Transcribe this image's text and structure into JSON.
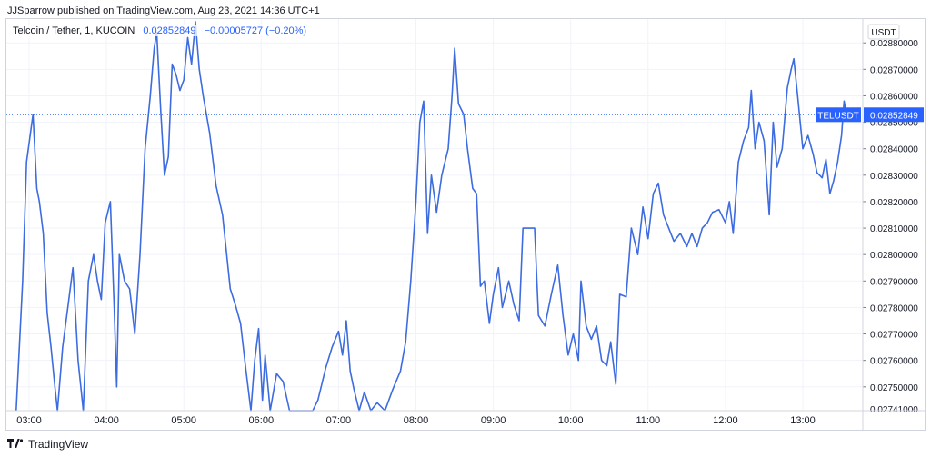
{
  "header": {
    "published_text": "JJSparrow published on TradingView.com, Aug 23, 2021 14:36 UTC+1"
  },
  "legend": {
    "symbol": "Telcoin / Tether, 1, KUCOIN",
    "last": "0.02852849",
    "change": "−0.00005727 (−0.20%)"
  },
  "price_axis": {
    "currency": "USDT",
    "ticker_label": "TELUSDT",
    "ticker_value": "0.02852849",
    "bottom_label": "0.02741000"
  },
  "footer": {
    "brand": "TradingView"
  },
  "colors": {
    "line": "#3d6be0",
    "accent": "#2962ff",
    "grid": "#f0f3fa",
    "text": "#131722"
  },
  "chart_data": {
    "type": "line",
    "title": "Telcoin / Tether, 1, KUCOIN",
    "xlabel": "",
    "ylabel": "",
    "grid": true,
    "ylim": [
      0.02741,
      0.02889
    ],
    "x_ticks": [
      "03:00",
      "04:00",
      "05:00",
      "06:00",
      "07:00",
      "08:00",
      "09:00",
      "10:00",
      "11:00",
      "12:00",
      "13:00"
    ],
    "y_ticks": [
      "0.02750000",
      "0.02760000",
      "0.02770000",
      "0.02780000",
      "0.02790000",
      "0.02800000",
      "0.02810000",
      "0.02820000",
      "0.02830000",
      "0.02840000",
      "0.02850000",
      "0.02860000",
      "0.02870000",
      "0.02880000"
    ],
    "last_price": 0.02852849,
    "series": [
      {
        "points": [
          [
            "02:50",
            0.02741
          ],
          [
            "02:55",
            0.0279
          ],
          [
            "02:58",
            0.02835
          ],
          [
            "03:03",
            0.02853
          ],
          [
            "03:06",
            0.02825
          ],
          [
            "03:08",
            0.0282
          ],
          [
            "03:11",
            0.02808
          ],
          [
            "03:14",
            0.02778
          ],
          [
            "03:17",
            0.02765
          ],
          [
            "03:20",
            0.0275
          ],
          [
            "03:22",
            0.02741
          ],
          [
            "03:26",
            0.02765
          ],
          [
            "03:30",
            0.0278
          ],
          [
            "03:34",
            0.02795
          ],
          [
            "03:38",
            0.0276
          ],
          [
            "03:42",
            0.02741
          ],
          [
            "03:46",
            0.0279
          ],
          [
            "03:50",
            0.028
          ],
          [
            "03:53",
            0.0279
          ],
          [
            "03:56",
            0.02783
          ],
          [
            "03:59",
            0.02812
          ],
          [
            "04:03",
            0.0282
          ],
          [
            "04:06",
            0.0278
          ],
          [
            "04:08",
            0.0275
          ],
          [
            "04:10",
            0.028
          ],
          [
            "04:14",
            0.0279
          ],
          [
            "04:18",
            0.02787
          ],
          [
            "04:22",
            0.0277
          ],
          [
            "04:26",
            0.028
          ],
          [
            "04:30",
            0.0284
          ],
          [
            "04:34",
            0.0286
          ],
          [
            "04:37",
            0.02878
          ],
          [
            "04:39",
            0.02884
          ],
          [
            "04:42",
            0.02855
          ],
          [
            "04:45",
            0.0283
          ],
          [
            "04:48",
            0.02837
          ],
          [
            "04:51",
            0.02872
          ],
          [
            "04:54",
            0.02868
          ],
          [
            "04:57",
            0.02862
          ],
          [
            "05:00",
            0.02866
          ],
          [
            "05:03",
            0.02882
          ],
          [
            "05:06",
            0.02872
          ],
          [
            "05:09",
            0.02888
          ],
          [
            "05:12",
            0.0287
          ],
          [
            "05:15",
            0.0286
          ],
          [
            "05:20",
            0.02846
          ],
          [
            "05:25",
            0.02826
          ],
          [
            "05:30",
            0.02815
          ],
          [
            "05:36",
            0.02787
          ],
          [
            "05:40",
            0.02781
          ],
          [
            "05:44",
            0.02774
          ],
          [
            "05:48",
            0.02757
          ],
          [
            "05:52",
            0.02741
          ],
          [
            "05:55",
            0.0276
          ],
          [
            "05:58",
            0.02772
          ],
          [
            "06:01",
            0.02745
          ],
          [
            "06:03",
            0.02762
          ],
          [
            "06:07",
            0.02741
          ],
          [
            "06:12",
            0.02755
          ],
          [
            "06:17",
            0.02752
          ],
          [
            "06:22",
            0.02741
          ],
          [
            "06:27",
            0.02741
          ],
          [
            "06:32",
            0.02741
          ],
          [
            "06:40",
            0.02741
          ],
          [
            "06:44",
            0.02745
          ],
          [
            "06:50",
            0.02757
          ],
          [
            "06:55",
            0.02765
          ],
          [
            "07:00",
            0.02771
          ],
          [
            "07:03",
            0.02762
          ],
          [
            "07:06",
            0.02775
          ],
          [
            "07:09",
            0.02756
          ],
          [
            "07:12",
            0.02749
          ],
          [
            "07:16",
            0.02741
          ],
          [
            "07:20",
            0.02748
          ],
          [
            "07:25",
            0.02741
          ],
          [
            "07:30",
            0.02744
          ],
          [
            "07:36",
            0.02741
          ],
          [
            "07:42",
            0.02749
          ],
          [
            "07:48",
            0.02756
          ],
          [
            "07:52",
            0.02767
          ],
          [
            "07:56",
            0.0279
          ],
          [
            "08:00",
            0.0282
          ],
          [
            "08:03",
            0.0285
          ],
          [
            "08:06",
            0.02858
          ],
          [
            "08:09",
            0.02808
          ],
          [
            "08:12",
            0.0283
          ],
          [
            "08:16",
            0.02816
          ],
          [
            "08:20",
            0.0283
          ],
          [
            "08:25",
            0.0284
          ],
          [
            "08:28",
            0.0286
          ],
          [
            "08:30",
            0.02878
          ],
          [
            "08:33",
            0.02857
          ],
          [
            "08:37",
            0.02853
          ],
          [
            "08:40",
            0.0284
          ],
          [
            "08:44",
            0.02825
          ],
          [
            "08:47",
            0.02823
          ],
          [
            "08:50",
            0.02788
          ],
          [
            "08:53",
            0.0279
          ],
          [
            "08:57",
            0.02774
          ],
          [
            "09:00",
            0.02785
          ],
          [
            "09:04",
            0.02795
          ],
          [
            "09:07",
            0.0278
          ],
          [
            "09:12",
            0.0279
          ],
          [
            "09:16",
            0.02781
          ],
          [
            "09:20",
            0.02775
          ],
          [
            "09:23",
            0.0281
          ],
          [
            "09:28",
            0.0281
          ],
          [
            "09:32",
            0.0281
          ],
          [
            "09:35",
            0.02777
          ],
          [
            "09:40",
            0.02773
          ],
          [
            "09:45",
            0.02785
          ],
          [
            "09:50",
            0.02796
          ],
          [
            "09:54",
            0.02777
          ],
          [
            "09:58",
            0.02762
          ],
          [
            "10:02",
            0.0277
          ],
          [
            "10:06",
            0.0276
          ],
          [
            "10:08",
            0.0279
          ],
          [
            "10:12",
            0.02773
          ],
          [
            "10:16",
            0.02768
          ],
          [
            "10:20",
            0.02773
          ],
          [
            "10:24",
            0.0276
          ],
          [
            "10:28",
            0.02758
          ],
          [
            "10:31",
            0.02767
          ],
          [
            "10:35",
            0.02751
          ],
          [
            "10:38",
            0.02785
          ],
          [
            "10:43",
            0.02784
          ],
          [
            "10:47",
            0.0281
          ],
          [
            "10:52",
            0.028
          ],
          [
            "10:56",
            0.02818
          ],
          [
            "11:00",
            0.02806
          ],
          [
            "11:04",
            0.02823
          ],
          [
            "11:08",
            0.02827
          ],
          [
            "11:12",
            0.02815
          ],
          [
            "11:16",
            0.0281
          ],
          [
            "11:20",
            0.02805
          ],
          [
            "11:25",
            0.02808
          ],
          [
            "11:30",
            0.02803
          ],
          [
            "11:34",
            0.02808
          ],
          [
            "11:38",
            0.02803
          ],
          [
            "11:42",
            0.0281
          ],
          [
            "11:46",
            0.02812
          ],
          [
            "11:50",
            0.02816
          ],
          [
            "11:55",
            0.02817
          ],
          [
            "12:00",
            0.02812
          ],
          [
            "12:03",
            0.0282
          ],
          [
            "12:06",
            0.02808
          ],
          [
            "12:10",
            0.02835
          ],
          [
            "12:14",
            0.02843
          ],
          [
            "12:18",
            0.02848
          ],
          [
            "12:20",
            0.02862
          ],
          [
            "12:23",
            0.0284
          ],
          [
            "12:26",
            0.0285
          ],
          [
            "12:30",
            0.02843
          ],
          [
            "12:34",
            0.02815
          ],
          [
            "12:37",
            0.0285
          ],
          [
            "12:40",
            0.02833
          ],
          [
            "12:44",
            0.0284
          ],
          [
            "12:48",
            0.02863
          ],
          [
            "12:51",
            0.0287
          ],
          [
            "12:53",
            0.02874
          ],
          [
            "12:56",
            0.0286
          ],
          [
            "13:00",
            0.0284
          ],
          [
            "13:04",
            0.02845
          ],
          [
            "13:08",
            0.02838
          ],
          [
            "13:11",
            0.02831
          ],
          [
            "13:15",
            0.02829
          ],
          [
            "13:18",
            0.02836
          ],
          [
            "13:21",
            0.02823
          ],
          [
            "13:24",
            0.02828
          ],
          [
            "13:27",
            0.02835
          ],
          [
            "13:30",
            0.02845
          ],
          [
            "13:32",
            0.02858
          ],
          [
            "13:34",
            0.02852849
          ]
        ]
      }
    ]
  }
}
